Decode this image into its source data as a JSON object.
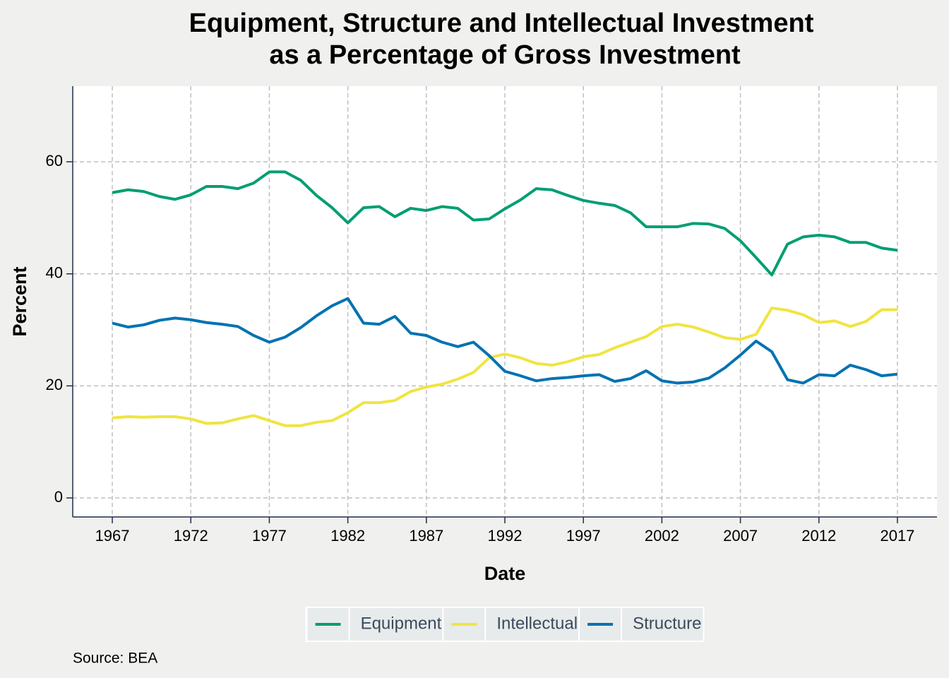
{
  "chart_data": {
    "type": "line",
    "title": [
      "Equipment, Structure and Intellectual Investment",
      "as a Percentage of Gross Investment"
    ],
    "x_label": "Date",
    "y_label": "Percent",
    "caption": "Source: BEA",
    "x": [
      1967,
      1968,
      1969,
      1970,
      1971,
      1972,
      1973,
      1974,
      1975,
      1976,
      1977,
      1978,
      1979,
      1980,
      1981,
      1982,
      1983,
      1984,
      1985,
      1986,
      1987,
      1988,
      1989,
      1990,
      1991,
      1992,
      1993,
      1994,
      1995,
      1996,
      1997,
      1998,
      1999,
      2000,
      2001,
      2002,
      2003,
      2004,
      2005,
      2006,
      2007,
      2008,
      2009,
      2010,
      2011,
      2012,
      2013,
      2014,
      2015,
      2016,
      2017
    ],
    "series": [
      {
        "name": "Equipment",
        "color": "#009E73",
        "values": [
          54.5,
          55,
          54.7,
          53.8,
          53.3,
          54.1,
          55.6,
          55.6,
          55.2,
          56.2,
          58.2,
          58.2,
          56.7,
          54,
          51.8,
          49.1,
          51.8,
          52,
          50.2,
          51.7,
          51.3,
          52,
          51.7,
          49.6,
          49.8,
          51.6,
          53.2,
          55.2,
          55,
          54,
          53.1,
          52.6,
          52.2,
          50.9,
          48.4,
          48.4,
          48.4,
          49,
          48.9,
          48.1,
          45.9,
          42.9,
          39.8,
          45.3,
          46.6,
          46.9,
          46.6,
          45.6,
          45.6,
          44.6,
          44.2
        ]
      },
      {
        "name": "Intellectual",
        "color": "#F0E442",
        "values": [
          14.3,
          14.5,
          14.4,
          14.5,
          14.5,
          14.1,
          13.3,
          13.4,
          14.1,
          14.7,
          13.8,
          12.9,
          12.9,
          13.5,
          13.8,
          15.2,
          17,
          17,
          17.4,
          19,
          19.8,
          20.3,
          21.2,
          22.4,
          25,
          25.7,
          25,
          24,
          23.7,
          24.3,
          25.2,
          25.6,
          26.8,
          27.8,
          28.8,
          30.6,
          31,
          30.5,
          29.6,
          28.6,
          28.3,
          29.2,
          33.9,
          33.5,
          32.7,
          31.3,
          31.6,
          30.6,
          31.5,
          33.6,
          33.6
        ]
      },
      {
        "name": "Structure",
        "color": "#0072B2",
        "values": [
          31.2,
          30.5,
          30.9,
          31.7,
          32.1,
          31.8,
          31.3,
          31,
          30.6,
          29,
          27.8,
          28.7,
          30.4,
          32.5,
          34.3,
          35.6,
          31.2,
          31,
          32.4,
          29.4,
          29,
          27.8,
          27,
          27.8,
          25.4,
          22.6,
          21.8,
          20.9,
          21.3,
          21.5,
          21.8,
          22,
          20.8,
          21.3,
          22.7,
          20.9,
          20.5,
          20.7,
          21.4,
          23.2,
          25.5,
          28,
          26.1,
          21.1,
          20.5,
          22,
          21.8,
          23.7,
          22.9,
          21.8,
          22.1
        ]
      }
    ],
    "xlim": [
      1964.48,
      2019.52
    ],
    "xticks": [
      1967,
      1972,
      1977,
      1982,
      1987,
      1992,
      1997,
      2002,
      2007,
      2012,
      2017
    ],
    "ylim": [
      -3.4,
      73.5
    ],
    "yticks": [
      0,
      20,
      40,
      60
    ],
    "grid": true,
    "legend_position": "bottom"
  }
}
